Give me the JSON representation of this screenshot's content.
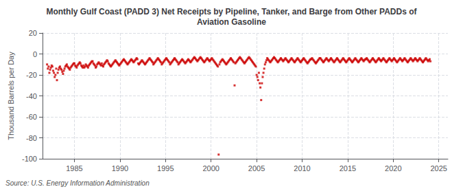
{
  "chart_data": {
    "type": "scatter",
    "title": "Monthly Gulf Coast (PADD 3) Net Receipts by Pipeline, Tanker, and Barge from Other PADDs of\nAviation Gasoline",
    "ylabel": "Thousand Barrels per Day",
    "source": "Source: U.S. Energy Information Administration",
    "color": "#cc0000",
    "marker": "square",
    "grid": true,
    "xlim": [
      1981.5,
      2026.0
    ],
    "ylim": [
      -100,
      20
    ],
    "xticks": [
      1985,
      1990,
      1995,
      2000,
      2005,
      2010,
      2015,
      2020,
      2025
    ],
    "yticks": [
      20,
      0,
      -20,
      -40,
      -60,
      -80,
      -100
    ],
    "x": [
      1982,
      1982.0833333333333,
      1982.1666666666667,
      1982.25,
      1982.3333333333333,
      1982.4166666666667,
      1982.5,
      1982.5833333333333,
      1982.6666666666667,
      1982.75,
      1982.8333333333333,
      1982.9166666666667,
      1983,
      1983.0833333333333,
      1983.1666666666667,
      1983.25,
      1983.3333333333333,
      1983.4166666666667,
      1983.5,
      1983.5833333333333,
      1983.6666666666667,
      1983.75,
      1983.8333333333333,
      1983.9166666666667,
      1984,
      1984.0833333333333,
      1984.1666666666667,
      1984.25,
      1984.3333333333333,
      1984.4166666666667,
      1984.5,
      1984.5833333333333,
      1984.6666666666667,
      1984.75,
      1984.8333333333333,
      1984.9166666666667,
      1985,
      1985.0833333333333,
      1985.1666666666667,
      1985.25,
      1985.3333333333333,
      1985.4166666666667,
      1985.5,
      1985.5833333333333,
      1985.6666666666667,
      1985.75,
      1985.8333333333333,
      1985.9166666666667,
      1986,
      1986.0833333333333,
      1986.1666666666667,
      1986.25,
      1986.3333333333333,
      1986.4166666666667,
      1986.5,
      1986.5833333333333,
      1986.6666666666667,
      1986.75,
      1986.8333333333333,
      1986.9166666666667,
      1987,
      1987.0833333333333,
      1987.1666666666667,
      1987.25,
      1987.3333333333333,
      1987.4166666666667,
      1987.5,
      1987.5833333333333,
      1987.6666666666667,
      1987.75,
      1987.8333333333333,
      1987.9166666666667,
      1988,
      1988.0833333333333,
      1988.1666666666667,
      1988.25,
      1988.3333333333333,
      1988.4166666666667,
      1988.5,
      1988.5833333333333,
      1988.6666666666667,
      1988.75,
      1988.8333333333333,
      1988.9166666666667,
      1989,
      1989.0833333333333,
      1989.1666666666667,
      1989.25,
      1989.3333333333333,
      1989.4166666666667,
      1989.5,
      1989.5833333333333,
      1989.6666666666667,
      1989.75,
      1989.8333333333333,
      1989.9166666666667,
      1990,
      1990.0833333333333,
      1990.1666666666667,
      1990.25,
      1990.3333333333333,
      1990.4166666666667,
      1990.5,
      1990.5833333333333,
      1990.6666666666667,
      1990.75,
      1990.8333333333333,
      1990.9166666666667,
      1991,
      1991.0833333333333,
      1991.1666666666667,
      1991.25,
      1991.3333333333333,
      1991.4166666666667,
      1991.5,
      1991.5833333333333,
      1991.6666666666667,
      1991.75,
      1991.8333333333333,
      1991.9166666666667,
      1992,
      1992.0833333333333,
      1992.1666666666667,
      1992.25,
      1992.3333333333333,
      1992.4166666666667,
      1992.5,
      1992.5833333333333,
      1992.6666666666667,
      1992.75,
      1992.8333333333333,
      1992.9166666666667,
      1993,
      1993.0833333333333,
      1993.1666666666667,
      1993.25,
      1993.3333333333333,
      1993.4166666666667,
      1993.5,
      1993.5833333333333,
      1993.6666666666667,
      1993.75,
      1993.8333333333333,
      1993.9166666666667,
      1994,
      1994.0833333333333,
      1994.1666666666667,
      1994.25,
      1994.3333333333333,
      1994.4166666666667,
      1994.5,
      1994.5833333333333,
      1994.6666666666667,
      1994.75,
      1994.8333333333333,
      1994.9166666666667,
      1995,
      1995.0833333333333,
      1995.1666666666667,
      1995.25,
      1995.3333333333333,
      1995.4166666666667,
      1995.5,
      1995.5833333333333,
      1995.6666666666667,
      1995.75,
      1995.8333333333333,
      1995.9166666666667,
      1996,
      1996.0833333333333,
      1996.1666666666667,
      1996.25,
      1996.3333333333333,
      1996.4166666666667,
      1996.5,
      1996.5833333333333,
      1996.6666666666667,
      1996.75,
      1996.8333333333333,
      1996.9166666666667,
      1997,
      1997.0833333333333,
      1997.1666666666667,
      1997.25,
      1997.3333333333333,
      1997.4166666666667,
      1997.5,
      1997.5833333333333,
      1997.6666666666667,
      1997.75,
      1997.8333333333333,
      1997.9166666666667,
      1998,
      1998.0833333333333,
      1998.1666666666667,
      1998.25,
      1998.3333333333333,
      1998.4166666666667,
      1998.5,
      1998.5833333333333,
      1998.6666666666667,
      1998.75,
      1998.8333333333333,
      1998.9166666666667,
      1999,
      1999.0833333333333,
      1999.1666666666667,
      1999.25,
      1999.3333333333333,
      1999.4166666666667,
      1999.5,
      1999.5833333333333,
      1999.6666666666667,
      1999.75,
      1999.8333333333333,
      1999.9166666666667,
      2000,
      2000.0833333333333,
      2000.1666666666667,
      2000.25,
      2000.3333333333333,
      2000.4166666666667,
      2000.5,
      2000.5833333333333,
      2000.6666666666667,
      2000.75,
      2000.8333333333333,
      2000.9166666666667,
      2001,
      2001.0833333333333,
      2001.1666666666667,
      2001.25,
      2001.3333333333333,
      2001.4166666666667,
      2001.5,
      2001.5833333333333,
      2001.6666666666667,
      2001.75,
      2001.8333333333333,
      2001.9166666666667,
      2002,
      2002.0833333333333,
      2002.1666666666667,
      2002.25,
      2002.3333333333333,
      2002.4166666666667,
      2002.5,
      2002.5833333333333,
      2002.6666666666667,
      2002.75,
      2002.8333333333333,
      2002.9166666666667,
      2003,
      2003.0833333333333,
      2003.1666666666667,
      2003.25,
      2003.3333333333333,
      2003.4166666666667,
      2003.5,
      2003.5833333333333,
      2003.6666666666667,
      2003.75,
      2003.8333333333333,
      2003.9166666666667,
      2004,
      2004.0833333333333,
      2004.1666666666667,
      2004.25,
      2004.3333333333333,
      2004.4166666666667,
      2004.5,
      2004.5833333333333,
      2004.6666666666667,
      2004.75,
      2004.8333333333333,
      2004.9166666666667,
      2005,
      2005.0833333333333,
      2005.1666666666667,
      2005.25,
      2005.3333333333333,
      2005.4166666666667,
      2005.5,
      2005.5833333333333,
      2005.6666666666667,
      2005.75,
      2005.8333333333333,
      2005.9166666666667,
      2006,
      2006.0833333333333,
      2006.1666666666667,
      2006.25,
      2006.3333333333333,
      2006.4166666666667,
      2006.5,
      2006.5833333333333,
      2006.6666666666667,
      2006.75,
      2006.8333333333333,
      2006.9166666666667,
      2007,
      2007.0833333333333,
      2007.1666666666667,
      2007.25,
      2007.3333333333333,
      2007.4166666666667,
      2007.5,
      2007.5833333333333,
      2007.6666666666667,
      2007.75,
      2007.8333333333333,
      2007.9166666666667,
      2008,
      2008.0833333333333,
      2008.1666666666667,
      2008.25,
      2008.3333333333333,
      2008.4166666666667,
      2008.5,
      2008.5833333333333,
      2008.6666666666667,
      2008.75,
      2008.8333333333333,
      2008.9166666666667,
      2009,
      2009.0833333333333,
      2009.1666666666667,
      2009.25,
      2009.3333333333333,
      2009.4166666666667,
      2009.5,
      2009.5833333333333,
      2009.6666666666667,
      2009.75,
      2009.8333333333333,
      2009.9166666666667,
      2010,
      2010.0833333333333,
      2010.1666666666667,
      2010.25,
      2010.3333333333333,
      2010.4166666666667,
      2010.5,
      2010.5833333333333,
      2010.6666666666667,
      2010.75,
      2010.8333333333333,
      2010.9166666666667,
      2011,
      2011.0833333333333,
      2011.1666666666667,
      2011.25,
      2011.3333333333333,
      2011.4166666666667,
      2011.5,
      2011.5833333333333,
      2011.6666666666667,
      2011.75,
      2011.8333333333333,
      2011.9166666666667,
      2012,
      2012.0833333333333,
      2012.1666666666667,
      2012.25,
      2012.3333333333333,
      2012.4166666666667,
      2012.5,
      2012.5833333333333,
      2012.6666666666667,
      2012.75,
      2012.8333333333333,
      2012.9166666666667,
      2013,
      2013.0833333333333,
      2013.1666666666667,
      2013.25,
      2013.3333333333333,
      2013.4166666666667,
      2013.5,
      2013.5833333333333,
      2013.6666666666667,
      2013.75,
      2013.8333333333333,
      2013.9166666666667,
      2014,
      2014.0833333333333,
      2014.1666666666667,
      2014.25,
      2014.3333333333333,
      2014.4166666666667,
      2014.5,
      2014.5833333333333,
      2014.6666666666667,
      2014.75,
      2014.8333333333333,
      2014.9166666666667,
      2015,
      2015.0833333333333,
      2015.1666666666667,
      2015.25,
      2015.3333333333333,
      2015.4166666666667,
      2015.5,
      2015.5833333333333,
      2015.6666666666667,
      2015.75,
      2015.8333333333333,
      2015.9166666666667,
      2016,
      2016.0833333333333,
      2016.1666666666667,
      2016.25,
      2016.3333333333333,
      2016.4166666666667,
      2016.5,
      2016.5833333333333,
      2016.6666666666667,
      2016.75,
      2016.8333333333333,
      2016.9166666666667,
      2017,
      2017.0833333333333,
      2017.1666666666667,
      2017.25,
      2017.3333333333333,
      2017.4166666666667,
      2017.5,
      2017.5833333333333,
      2017.6666666666667,
      2017.75,
      2017.8333333333333,
      2017.9166666666667,
      2018,
      2018.0833333333333,
      2018.1666666666667,
      2018.25,
      2018.3333333333333,
      2018.4166666666667,
      2018.5,
      2018.5833333333333,
      2018.6666666666667,
      2018.75,
      2018.8333333333333,
      2018.9166666666667,
      2019,
      2019.0833333333333,
      2019.1666666666667,
      2019.25,
      2019.3333333333333,
      2019.4166666666667,
      2019.5,
      2019.5833333333333,
      2019.6666666666667,
      2019.75,
      2019.8333333333333,
      2019.9166666666667,
      2020,
      2020.0833333333333,
      2020.1666666666667,
      2020.25,
      2020.3333333333333,
      2020.4166666666667,
      2020.5,
      2020.5833333333333,
      2020.6666666666667,
      2020.75,
      2020.8333333333333,
      2020.9166666666667,
      2021,
      2021.0833333333333,
      2021.1666666666667,
      2021.25,
      2021.3333333333333,
      2021.4166666666667,
      2021.5,
      2021.5833333333333,
      2021.6666666666667,
      2021.75,
      2021.8333333333333,
      2021.9166666666667,
      2022,
      2022.0833333333333,
      2022.1666666666667,
      2022.25,
      2022.3333333333333,
      2022.4166666666667,
      2022.5,
      2022.5833333333333,
      2022.6666666666667,
      2022.75,
      2022.8333333333333,
      2022.9166666666667,
      2023,
      2023.0833333333333,
      2023.1666666666667,
      2023.25,
      2023.3333333333333,
      2023.4166666666667,
      2023.5,
      2023.5833333333333,
      2023.6666666666667,
      2023.75,
      2023.8333333333333,
      2023.9166666666667,
      2024,
      2024.0833333333333
    ],
    "values": [
      -10,
      -14,
      -12,
      -18,
      -15,
      -13,
      -11,
      -12,
      -16,
      -18,
      -22,
      -20,
      -14,
      -25,
      -18,
      -15,
      -13,
      -12,
      -14,
      -15,
      -17,
      -19,
      -16,
      -14,
      -12,
      -11,
      -10,
      -12,
      -13,
      -14,
      -15,
      -13,
      -12,
      -11,
      -10,
      -9,
      -9,
      -11,
      -12,
      -13,
      -11,
      -10,
      -9,
      -8,
      -9,
      -11,
      -12,
      -13,
      -11,
      -13,
      -12,
      -10,
      -11,
      -12,
      -13,
      -11,
      -10,
      -9,
      -8,
      -7,
      -7,
      -9,
      -10,
      -11,
      -13,
      -12,
      -10,
      -9,
      -8,
      -9,
      -10,
      -11,
      -9,
      -11,
      -12,
      -10,
      -9,
      -8,
      -7,
      -6,
      -7,
      -9,
      -10,
      -11,
      -12,
      -11,
      -10,
      -9,
      -8,
      -7,
      -6,
      -7,
      -8,
      -9,
      -10,
      -11,
      -10,
      -9,
      -8,
      -7,
      -6,
      -5,
      -6,
      -7,
      -8,
      -9,
      -10,
      -9,
      -8,
      -7,
      -6,
      -5,
      -6,
      -7,
      -8,
      -7,
      -6,
      -5,
      -4,
      -5,
      -9,
      -10,
      -9,
      -8,
      -7,
      -6,
      -7,
      -8,
      -9,
      -10,
      -9,
      -8,
      -7,
      -6,
      -5,
      -4,
      -5,
      -6,
      -7,
      -8,
      -10,
      -9,
      -8,
      -7,
      -6,
      -5,
      -4,
      -5,
      -6,
      -7,
      -8,
      -10,
      -9,
      -8,
      -7,
      -6,
      -5,
      -4,
      -5,
      -6,
      -7,
      -8,
      -10,
      -9,
      -8,
      -7,
      -6,
      -5,
      -4,
      -5,
      -6,
      -7,
      -8,
      -10,
      -9,
      -8,
      -7,
      -6,
      -5,
      -6,
      -7,
      -8,
      -9,
      -8,
      -7,
      -6,
      -5,
      -6,
      -7,
      -8,
      -7,
      -6,
      -5,
      -4,
      -3,
      -4,
      -5,
      -6,
      -7,
      -6,
      -5,
      -4,
      -3,
      -4,
      -5,
      -6,
      -7,
      -8,
      -7,
      -6,
      -5,
      -4,
      -5,
      -6,
      -7,
      -6,
      -5,
      -4,
      -5,
      -6,
      -7,
      -8,
      -9,
      -10,
      -11,
      -12,
      -96,
      -10,
      -8,
      -7,
      -6,
      -5,
      -6,
      -7,
      -8,
      -9,
      -10,
      -9,
      -8,
      -7,
      -6,
      -5,
      -4,
      -5,
      -6,
      -7,
      -8,
      -30,
      -9,
      -8,
      -7,
      -6,
      -5,
      -4,
      -3,
      -4,
      -5,
      -6,
      -7,
      -8,
      -9,
      -8,
      -7,
      -6,
      -5,
      -4,
      -3,
      -4,
      -5,
      -6,
      -7,
      -8,
      -9,
      -10,
      -11,
      -12,
      -20,
      -22,
      -25,
      -18,
      -28,
      -32,
      -44,
      -28,
      -22,
      -18,
      -14,
      -10,
      -8,
      -6,
      -4,
      -5,
      -6,
      -7,
      -8,
      -7,
      -6,
      -5,
      -4,
      -3,
      -4,
      -5,
      -6,
      -7,
      -8,
      -7,
      -6,
      -5,
      -4,
      -5,
      -6,
      -7,
      -6,
      -5,
      -4,
      -5,
      -6,
      -7,
      -8,
      -7,
      -6,
      -5,
      -4,
      -5,
      -6,
      -7,
      -8,
      -7,
      -6,
      -5,
      -4,
      -5,
      -6,
      -7,
      -8,
      -7,
      -6,
      -5,
      -4,
      -5,
      -6,
      -7,
      -8,
      -9,
      -8,
      -7,
      -6,
      -5,
      -5,
      -4,
      -5,
      -6,
      -7,
      -8,
      -9,
      -8,
      -7,
      -6,
      -5,
      -4,
      -4,
      -5,
      -6,
      -7,
      -8,
      -7,
      -6,
      -5,
      -4,
      -5,
      -6,
      -7,
      -6,
      -5,
      -4,
      -5,
      -6,
      -7,
      -8,
      -7,
      -6,
      -5,
      -4,
      -5,
      -6,
      -7,
      -8,
      -7,
      -6,
      -5,
      -4,
      -5,
      -6,
      -7,
      -8,
      -7,
      -6,
      -5,
      -4,
      -5,
      -6,
      -7,
      -8,
      -7,
      -6,
      -5,
      -4,
      -5,
      -6,
      -7,
      -8,
      -7,
      -6,
      -5,
      -4,
      -5,
      -6,
      -7,
      -6,
      -5,
      -5,
      -4,
      -5,
      -6,
      -7,
      -8,
      -7,
      -6,
      -5,
      -4,
      -5,
      -6,
      -7,
      -8,
      -7,
      -6,
      -5,
      -4,
      -5,
      -6,
      -7,
      -6,
      -5,
      -4,
      -5,
      -6,
      -7,
      -8,
      -7,
      -6,
      -5,
      -4,
      -5,
      -6,
      -7,
      -6,
      -5,
      -4,
      -5,
      -6,
      -7,
      -8,
      -7,
      -6,
      -5,
      -4,
      -5,
      -6,
      -7,
      -6,
      -5,
      -4,
      -5,
      -6,
      -7,
      -8,
      -7,
      -6,
      -5,
      -4,
      -5,
      -6,
      -7,
      -6,
      -5,
      -4,
      -5,
      -6,
      -7,
      -6,
      -5,
      -4,
      -5,
      -6,
      -7,
      -8,
      -7,
      -6,
      -5,
      -4,
      -5,
      -6,
      -7,
      -6,
      -5,
      -7
    ]
  }
}
